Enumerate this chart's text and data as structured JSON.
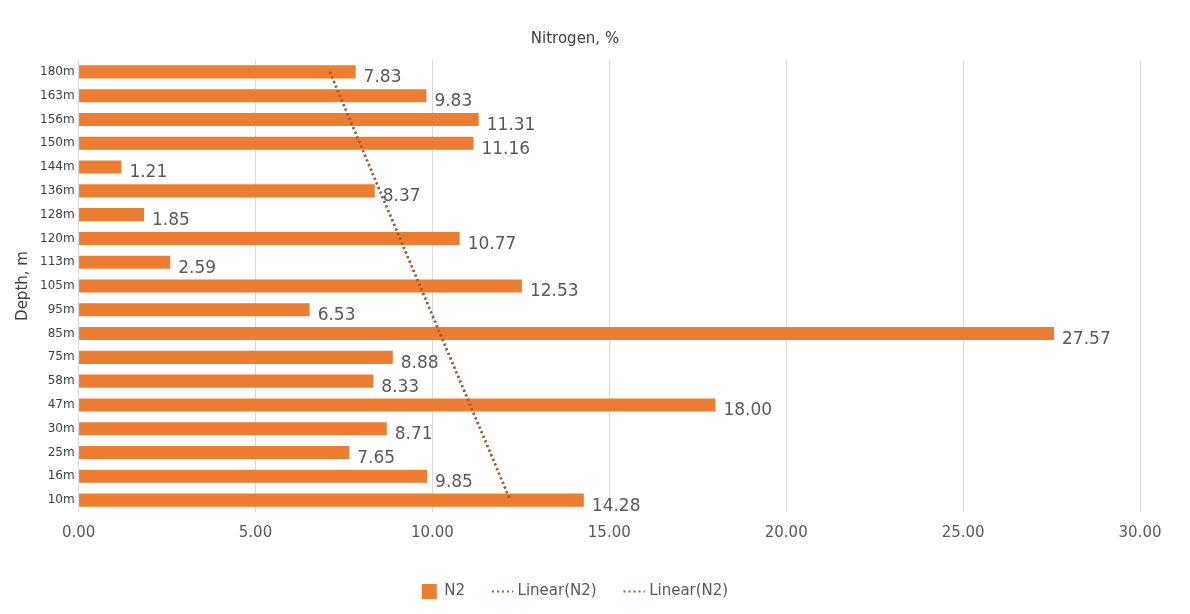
{
  "chart_data": {
    "type": "bar",
    "orientation": "horizontal",
    "title": "Nitrogen, %",
    "ylabel": "Depth, m",
    "categories": [
      "180m",
      "163m",
      "156m",
      "150m",
      "144m",
      "136m",
      "128m",
      "120m",
      "113m",
      "105m",
      "95m",
      "85m",
      "75m",
      "58m",
      "47m",
      "30m",
      "25m",
      "16m",
      "10m"
    ],
    "series": [
      {
        "name": "N2",
        "color": "#ed7d31",
        "values": [
          7.83,
          9.83,
          11.31,
          11.16,
          1.21,
          8.37,
          1.85,
          10.77,
          2.59,
          12.53,
          6.53,
          27.57,
          8.88,
          8.33,
          18.0,
          8.71,
          7.65,
          9.85,
          14.28
        ],
        "value_labels": [
          "7.83",
          "9.83",
          "11.31",
          "11.16",
          "1.21",
          "8.37",
          "1.85",
          "10.77",
          "2.59",
          "12.53",
          "6.53",
          "27.57",
          "8.88",
          "8.33",
          "18.00",
          "8.71",
          "7.65",
          "9.85",
          "14.28"
        ]
      },
      {
        "name": "Linear(N2)",
        "type": "line",
        "line_style": "dotted",
        "color": "#a65c2e",
        "values": [
          7.1,
          null,
          null,
          null,
          null,
          null,
          null,
          null,
          null,
          null,
          null,
          null,
          null,
          null,
          null,
          null,
          null,
          null,
          12.2
        ]
      },
      {
        "name": "Linear(N2)",
        "type": "line",
        "line_style": "dotted",
        "color": "#a65c2e",
        "values": [
          7.1,
          null,
          null,
          null,
          null,
          null,
          null,
          null,
          null,
          null,
          null,
          null,
          null,
          null,
          null,
          null,
          null,
          null,
          12.2
        ]
      }
    ],
    "marker": "none",
    "xlim": [
      0,
      30
    ],
    "xticks": [
      {
        "value": 0,
        "label": "0.00"
      },
      {
        "value": 5,
        "label": "5.00"
      },
      {
        "value": 10,
        "label": "10.00"
      },
      {
        "value": 15,
        "label": "15.00"
      },
      {
        "value": 20,
        "label": "20.00"
      },
      {
        "value": 25,
        "label": "25.00"
      },
      {
        "value": 30,
        "label": "30.00"
      }
    ],
    "grid": "x",
    "legend": "bottom"
  }
}
